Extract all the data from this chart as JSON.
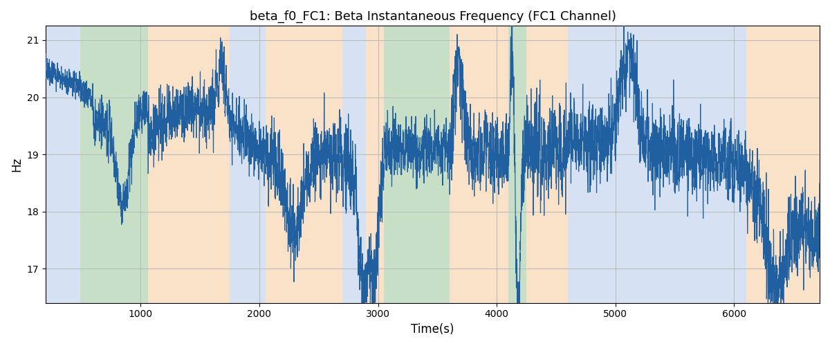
{
  "title": "beta_f0_FC1: Beta Instantaneous Frequency (FC1 Channel)",
  "xlabel": "Time(s)",
  "ylabel": "Hz",
  "xlim": [
    200,
    6720
  ],
  "ylim": [
    16.4,
    21.25
  ],
  "line_color": "#2060a0",
  "line_width": 0.85,
  "yticks": [
    17,
    18,
    19,
    20,
    21
  ],
  "xticks": [
    1000,
    2000,
    3000,
    4000,
    5000,
    6000
  ],
  "grid_color": "#bbbbbb",
  "background_color": "#ffffff",
  "bands": [
    {
      "start": 200,
      "end": 490,
      "color": "#aec6e8",
      "alpha": 0.5
    },
    {
      "start": 490,
      "end": 1060,
      "color": "#90c090",
      "alpha": 0.5
    },
    {
      "start": 1060,
      "end": 1750,
      "color": "#f5c690",
      "alpha": 0.5
    },
    {
      "start": 1750,
      "end": 2050,
      "color": "#aec6e8",
      "alpha": 0.5
    },
    {
      "start": 2050,
      "end": 2700,
      "color": "#f5c690",
      "alpha": 0.5
    },
    {
      "start": 2700,
      "end": 2900,
      "color": "#aec6e8",
      "alpha": 0.5
    },
    {
      "start": 2900,
      "end": 3050,
      "color": "#f5c690",
      "alpha": 0.5
    },
    {
      "start": 3050,
      "end": 3600,
      "color": "#90c090",
      "alpha": 0.5
    },
    {
      "start": 3600,
      "end": 4100,
      "color": "#f5c690",
      "alpha": 0.5
    },
    {
      "start": 4100,
      "end": 4250,
      "color": "#90c090",
      "alpha": 0.5
    },
    {
      "start": 4250,
      "end": 4600,
      "color": "#f5c690",
      "alpha": 0.5
    },
    {
      "start": 4600,
      "end": 6100,
      "color": "#aec6e8",
      "alpha": 0.5
    },
    {
      "start": 6100,
      "end": 6720,
      "color": "#f5c690",
      "alpha": 0.5
    }
  ],
  "t_start": 200,
  "t_end": 6720,
  "n_points": 6521
}
